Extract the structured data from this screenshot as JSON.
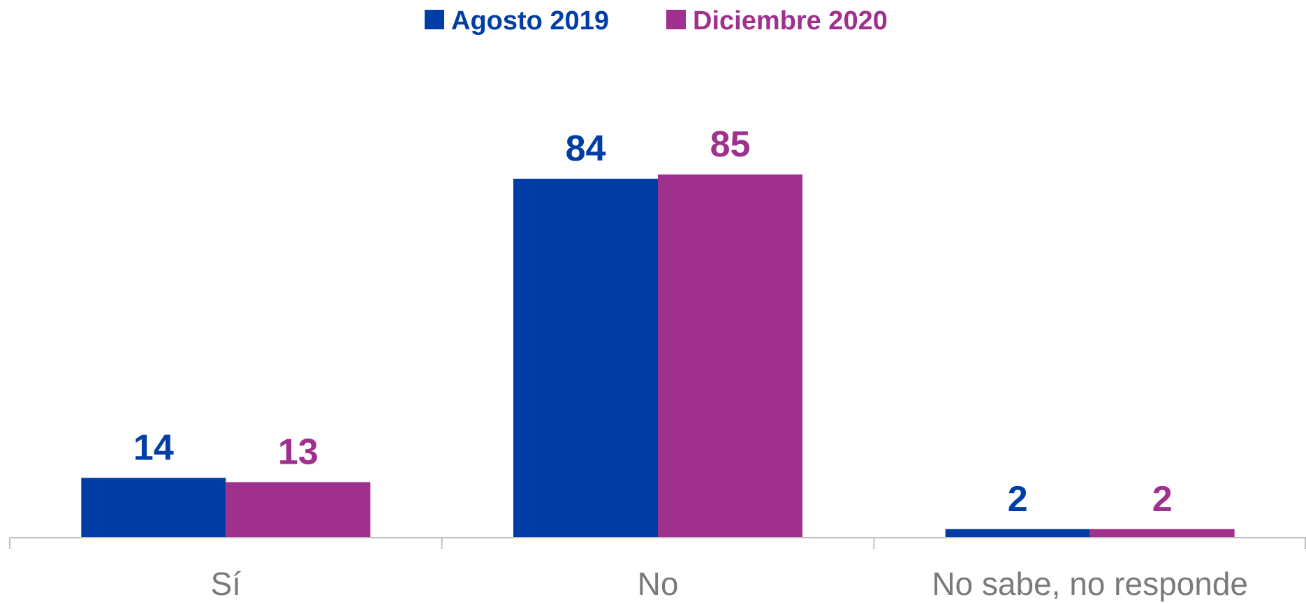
{
  "chart_data": {
    "type": "bar",
    "title": "",
    "xlabel": "",
    "ylabel": "",
    "categories": [
      "Sí",
      "No",
      "No sabe, no responde"
    ],
    "series": [
      {
        "name": "Agosto 2019",
        "values": [
          14,
          84,
          2
        ],
        "color": "#003DA5"
      },
      {
        "name": "Diciembre 2020",
        "values": [
          13,
          85,
          2
        ],
        "color": "#A0308E"
      }
    ],
    "ylim": [
      0,
      100
    ],
    "grid": false,
    "legend": "top-center",
    "data_labels": true,
    "axis_color": "#BFBFBF",
    "category_label_color": "#7A7A7A"
  }
}
